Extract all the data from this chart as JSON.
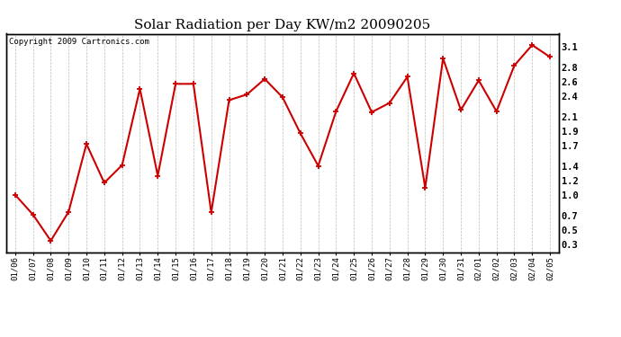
{
  "title": "Solar Radiation per Day KW/m2 20090205",
  "copyright": "Copyright 2009 Cartronics.com",
  "labels": [
    "01/06",
    "01/07",
    "01/08",
    "01/09",
    "01/10",
    "01/11",
    "01/12",
    "01/13",
    "01/14",
    "01/15",
    "01/16",
    "01/17",
    "01/18",
    "01/19",
    "01/20",
    "01/21",
    "01/22",
    "01/23",
    "01/24",
    "01/25",
    "01/26",
    "01/27",
    "01/28",
    "01/29",
    "01/30",
    "01/31",
    "02/01",
    "02/02",
    "02/03",
    "02/04",
    "02/05"
  ],
  "values": [
    1.0,
    0.72,
    0.35,
    0.76,
    1.72,
    1.17,
    1.42,
    2.5,
    1.27,
    2.57,
    2.57,
    0.75,
    2.34,
    2.42,
    2.64,
    2.38,
    1.87,
    1.41,
    2.18,
    2.72,
    2.17,
    2.3,
    2.67,
    1.1,
    2.93,
    2.2,
    2.62,
    2.18,
    2.83,
    3.12,
    2.95
  ],
  "line_color": "#cc0000",
  "marker": "+",
  "marker_size": 4,
  "line_width": 1.5,
  "bg_color": "#ffffff",
  "plot_bg_color": "#ffffff",
  "grid_color": "#bbbbbb",
  "yticks": [
    0.3,
    0.5,
    0.7,
    1.0,
    1.2,
    1.4,
    1.7,
    1.9,
    2.1,
    2.4,
    2.6,
    2.8,
    3.1
  ],
  "ylim": [
    0.18,
    3.28
  ],
  "title_fontsize": 11,
  "copyright_fontsize": 6.5,
  "tick_fontsize": 6.5,
  "ylabel_right_fontsize": 7.5
}
